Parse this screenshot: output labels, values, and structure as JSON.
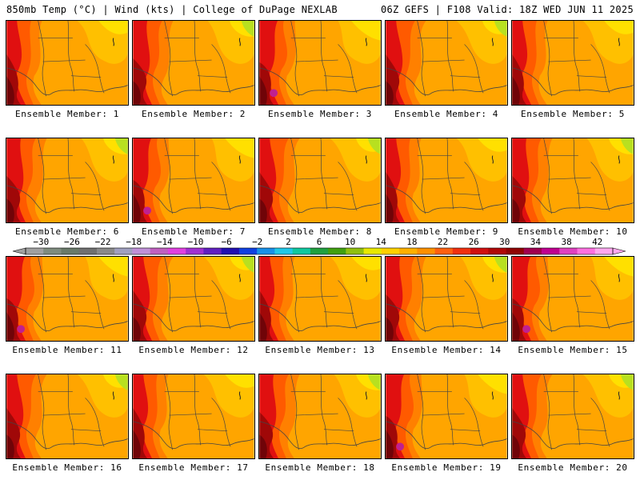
{
  "header": {
    "left": "850mb Temp (°C) | Wind (kts) | College of DuPage NEXLAB",
    "right": "06Z GEFS | F108 Valid: 18Z WED JUN 11 2025"
  },
  "members": [
    {
      "label": "Ensemble Member: 1",
      "variant": 0
    },
    {
      "label": "Ensemble Member: 2",
      "variant": 1
    },
    {
      "label": "Ensemble Member: 3",
      "variant": 2
    },
    {
      "label": "Ensemble Member: 4",
      "variant": 3
    },
    {
      "label": "Ensemble Member: 5",
      "variant": 0
    },
    {
      "label": "Ensemble Member: 6",
      "variant": 1
    },
    {
      "label": "Ensemble Member: 7",
      "variant": 2
    },
    {
      "label": "Ensemble Member: 8",
      "variant": 3
    },
    {
      "label": "Ensemble Member: 9",
      "variant": 0
    },
    {
      "label": "Ensemble Member: 10",
      "variant": 1
    },
    {
      "label": "Ensemble Member: 11",
      "variant": 2
    },
    {
      "label": "Ensemble Member: 12",
      "variant": 3
    },
    {
      "label": "Ensemble Member: 13",
      "variant": 0
    },
    {
      "label": "Ensemble Member: 14",
      "variant": 1
    },
    {
      "label": "Ensemble Member: 15",
      "variant": 2
    },
    {
      "label": "Ensemble Member: 16",
      "variant": 3
    },
    {
      "label": "Ensemble Member: 17",
      "variant": 0
    },
    {
      "label": "Ensemble Member: 18",
      "variant": 1
    },
    {
      "label": "Ensemble Member: 19",
      "variant": 2
    },
    {
      "label": "Ensemble Member: 20",
      "variant": 3
    }
  ],
  "colorbar": {
    "labels": [
      "−30",
      "−26",
      "−22",
      "−18",
      "−14",
      "−10",
      "−6",
      "−2",
      "2",
      "6",
      "10",
      "14",
      "18",
      "22",
      "26",
      "30",
      "34",
      "38",
      "42"
    ],
    "colors": [
      "#a0a0a0",
      "#7f8c7f",
      "#6a7a6a",
      "#707070",
      "#8a8a8a",
      "#a0a0c0",
      "#c090d8",
      "#c060c0",
      "#e040e0",
      "#a030d0",
      "#6020c0",
      "#2010b0",
      "#1040e0",
      "#1890e8",
      "#20c8e8",
      "#10c8a0",
      "#20a040",
      "#40a010",
      "#90c010",
      "#e8e800",
      "#ffd000",
      "#ffb000",
      "#ff9000",
      "#ff6010",
      "#f03010",
      "#d01010",
      "#b00808",
      "#900404",
      "#a00050",
      "#c00090",
      "#e040c0",
      "#ff70e0",
      "#ffa8f0"
    ]
  },
  "map_colors": {
    "yellow": "#ffe000",
    "light_orange": "#ffc000",
    "orange": "#ffa500",
    "deep_orange": "#ff8000",
    "orange_red": "#ff5a00",
    "red": "#e01010",
    "dark_red": "#a00808",
    "maroon": "#700408",
    "lime": "#b8e020",
    "magenta": "#c02090"
  }
}
